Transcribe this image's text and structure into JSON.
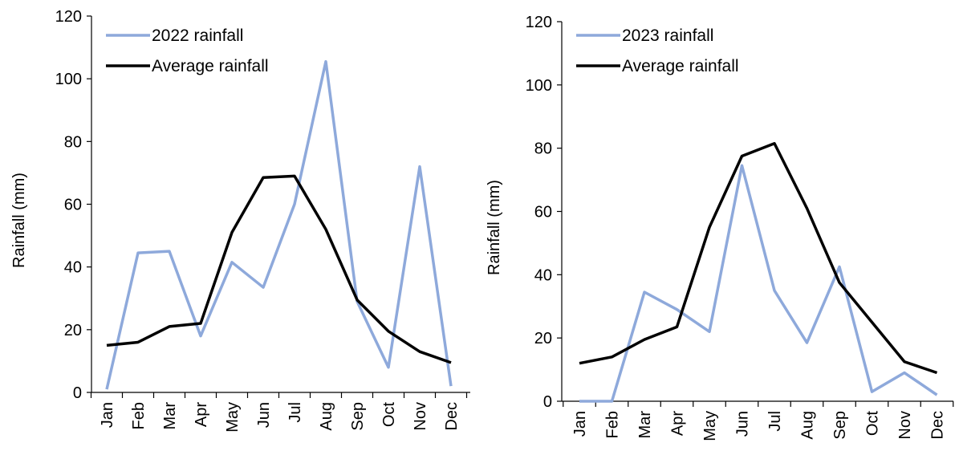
{
  "chart_data": [
    {
      "type": "line",
      "title": "",
      "xlabel": "",
      "ylabel": "Rainfall (mm)",
      "ylim": [
        0,
        120
      ],
      "yticks": [
        0,
        20,
        40,
        60,
        80,
        100,
        120
      ],
      "categories": [
        "Jan",
        "Feb",
        "Mar",
        "Apr",
        "May",
        "Jun",
        "Jul",
        "Aug",
        "Sep",
        "Oct",
        "Nov",
        "Dec"
      ],
      "legend_position": "top-left",
      "grid": false,
      "series": [
        {
          "name": "2022 rainfall",
          "color": "#8ea9db",
          "values": [
            1,
            44.5,
            45,
            18,
            41.5,
            33.5,
            60,
            105.5,
            29,
            8,
            72,
            2
          ]
        },
        {
          "name": "Average rainfall",
          "color": "#000000",
          "values": [
            15,
            16,
            21,
            22,
            51,
            68.5,
            69,
            52,
            29.5,
            19.5,
            13,
            9.5
          ]
        }
      ]
    },
    {
      "type": "line",
      "title": "",
      "xlabel": "",
      "ylabel": "Rainfall (mm)",
      "ylim": [
        0,
        120
      ],
      "yticks": [
        0,
        20,
        40,
        60,
        80,
        100,
        120
      ],
      "categories": [
        "Jan",
        "Feb",
        "Mar",
        "Apr",
        "May",
        "Jun",
        "Jul",
        "Aug",
        "Sep",
        "Oct",
        "Nov",
        "Dec"
      ],
      "legend_position": "top-left",
      "grid": false,
      "series": [
        {
          "name": "2023 rainfall",
          "color": "#8ea9db",
          "values": [
            0,
            0,
            34.5,
            29,
            22,
            74.5,
            35,
            18.5,
            42.5,
            3,
            9,
            2
          ]
        },
        {
          "name": "Average rainfall",
          "color": "#000000",
          "values": [
            12,
            14,
            19.5,
            23.5,
            55,
            77.5,
            81.5,
            61,
            37.5,
            25,
            12.5,
            9
          ]
        }
      ]
    }
  ]
}
